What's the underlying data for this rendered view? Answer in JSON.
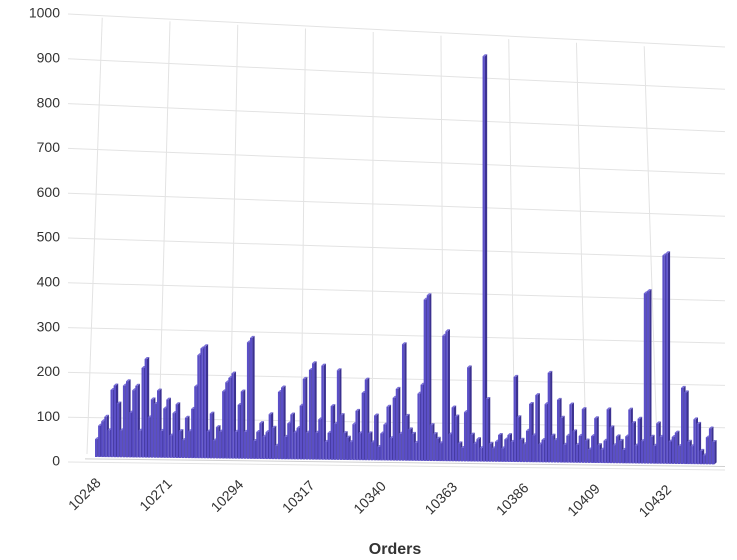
{
  "chart_data": {
    "type": "bar3d",
    "x_label": "Orders",
    "categories": [
      "10248",
      null,
      null,
      null,
      null,
      null,
      null,
      null,
      null,
      null,
      null,
      null,
      null,
      null,
      null,
      null,
      null,
      null,
      null,
      null,
      null,
      null,
      null,
      "10271",
      null,
      null,
      null,
      null,
      null,
      null,
      null,
      null,
      null,
      null,
      null,
      null,
      null,
      null,
      null,
      null,
      null,
      null,
      null,
      null,
      null,
      null,
      "10294",
      null,
      null,
      null,
      null,
      null,
      null,
      null,
      null,
      null,
      null,
      null,
      null,
      null,
      null,
      null,
      null,
      null,
      null,
      null,
      null,
      null,
      null,
      "10317",
      null,
      null,
      null,
      null,
      null,
      null,
      null,
      null,
      null,
      null,
      null,
      null,
      null,
      null,
      null,
      null,
      null,
      null,
      null,
      null,
      null,
      null,
      "10340",
      null,
      null,
      null,
      null,
      null,
      null,
      null,
      null,
      null,
      null,
      null,
      null,
      null,
      null,
      null,
      null,
      null,
      null,
      null,
      null,
      null,
      null,
      "10363",
      null,
      null,
      null,
      null,
      null,
      null,
      null,
      null,
      null,
      null,
      null,
      null,
      null,
      null,
      null,
      null,
      null,
      null,
      null,
      null,
      null,
      null,
      "10386",
      null,
      null,
      null,
      null,
      null,
      null,
      null,
      null,
      null,
      null,
      null,
      null,
      null,
      null,
      null,
      null,
      null,
      null,
      null,
      null,
      null,
      null,
      "10409",
      null,
      null,
      null,
      null,
      null,
      null,
      null,
      null,
      null,
      null,
      null,
      null,
      null,
      null,
      null,
      null,
      null,
      null,
      null,
      null,
      null,
      null,
      "10432",
      null,
      null,
      null,
      null,
      null,
      null,
      null,
      null,
      null,
      null,
      null,
      null,
      null,
      null,
      null
    ],
    "values": [
      40,
      70,
      80,
      90,
      60,
      150,
      160,
      120,
      60,
      160,
      170,
      100,
      150,
      160,
      60,
      200,
      220,
      90,
      130,
      120,
      150,
      60,
      110,
      130,
      50,
      100,
      120,
      60,
      40,
      90,
      60,
      110,
      160,
      230,
      245,
      250,
      60,
      100,
      40,
      70,
      60,
      150,
      170,
      180,
      190,
      60,
      120,
      150,
      60,
      260,
      270,
      40,
      60,
      80,
      50,
      60,
      100,
      70,
      30,
      150,
      160,
      50,
      80,
      100,
      60,
      70,
      120,
      180,
      60,
      200,
      215,
      60,
      90,
      210,
      40,
      60,
      120,
      80,
      200,
      100,
      60,
      50,
      40,
      80,
      110,
      60,
      150,
      180,
      60,
      40,
      100,
      30,
      60,
      80,
      120,
      50,
      140,
      160,
      60,
      260,
      100,
      70,
      60,
      40,
      150,
      170,
      360,
      370,
      80,
      60,
      50,
      40,
      280,
      290,
      60,
      120,
      100,
      40,
      30,
      110,
      210,
      60,
      40,
      50,
      30,
      905,
      140,
      40,
      30,
      45,
      60,
      30,
      50,
      60,
      45,
      190,
      100,
      50,
      40,
      70,
      130,
      60,
      150,
      40,
      50,
      130,
      200,
      60,
      50,
      140,
      100,
      40,
      60,
      130,
      70,
      40,
      60,
      120,
      50,
      30,
      60,
      100,
      40,
      30,
      50,
      120,
      80,
      40,
      60,
      50,
      30,
      60,
      120,
      90,
      40,
      100,
      50,
      380,
      385,
      60,
      40,
      90,
      60,
      465,
      470,
      50,
      60,
      70,
      40,
      170,
      160,
      50,
      40,
      100,
      90,
      30,
      20,
      60,
      80,
      50
    ],
    "color": "#5b4fc7",
    "ylim": [
      0,
      1000
    ],
    "yticks": [
      0,
      100,
      200,
      300,
      400,
      500,
      600,
      700,
      800,
      900,
      1000
    ],
    "grid": true
  }
}
